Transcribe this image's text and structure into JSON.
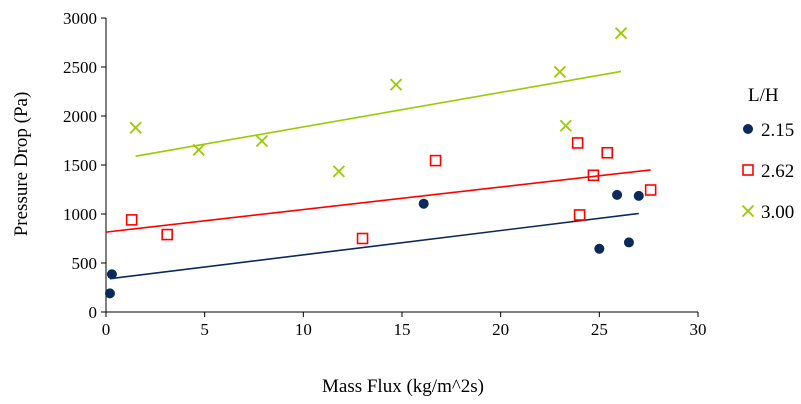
{
  "chart_data": {
    "type": "scatter",
    "title": "",
    "xlabel": "Mass Flux (kg/m^2s)",
    "ylabel": "Pressure Drop (Pa)",
    "xlim": [
      0,
      30
    ],
    "ylim": [
      0,
      3000
    ],
    "x_ticks": [
      "0",
      "5",
      "10",
      "15",
      "20",
      "25",
      "30"
    ],
    "y_ticks": [
      "0",
      "500",
      "1000",
      "1500",
      "2000",
      "2500",
      "3000"
    ],
    "grid": false,
    "legend": {
      "title": "L/H",
      "placement": "right"
    },
    "series": [
      {
        "name": "2.15",
        "marker": "circle",
        "color": "#0b2a5a",
        "points": [
          [
            0.2,
            190
          ],
          [
            0.3,
            385
          ],
          [
            16.1,
            1105
          ],
          [
            25.0,
            645
          ],
          [
            25.9,
            1195
          ],
          [
            26.5,
            710
          ],
          [
            27.0,
            1185
          ]
        ],
        "trendline": [
          [
            0.2,
            340
          ],
          [
            27.0,
            1005
          ]
        ]
      },
      {
        "name": "2.62",
        "marker": "square",
        "color": "#ff0000",
        "points": [
          [
            1.3,
            940
          ],
          [
            3.1,
            790
          ],
          [
            13.0,
            750
          ],
          [
            16.7,
            1545
          ],
          [
            23.9,
            1725
          ],
          [
            24.0,
            990
          ],
          [
            24.7,
            1395
          ],
          [
            25.4,
            1625
          ],
          [
            27.6,
            1245
          ]
        ],
        "trendline": [
          [
            0.0,
            815
          ],
          [
            27.6,
            1450
          ]
        ]
      },
      {
        "name": "3.00",
        "marker": "x",
        "color": "#99cc00",
        "points": [
          [
            1.5,
            1880
          ],
          [
            4.7,
            1655
          ],
          [
            7.9,
            1745
          ],
          [
            11.8,
            1435
          ],
          [
            14.7,
            2320
          ],
          [
            23.0,
            2450
          ],
          [
            23.3,
            1900
          ],
          [
            26.1,
            2845
          ]
        ],
        "trendline": [
          [
            1.5,
            1590
          ],
          [
            26.1,
            2455
          ]
        ]
      }
    ]
  }
}
